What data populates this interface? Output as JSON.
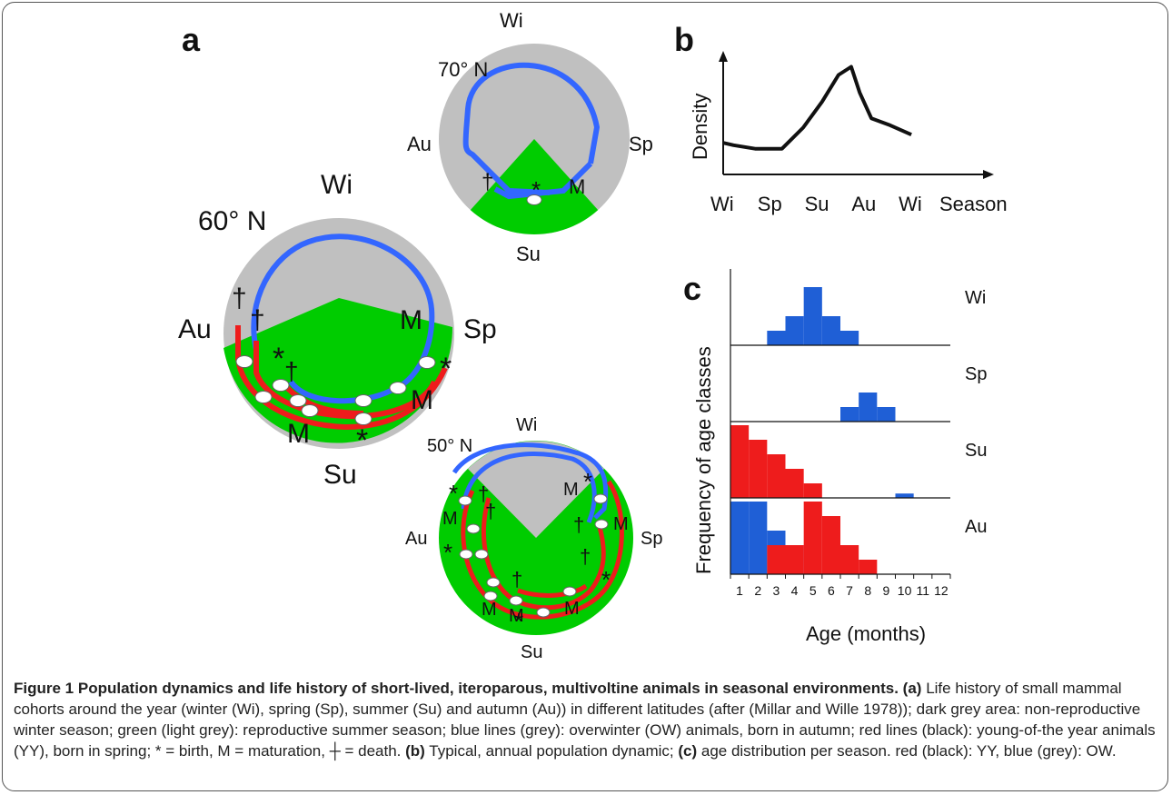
{
  "panels": {
    "a": {
      "label": "a",
      "diagrams": [
        {
          "latitude": "70° N",
          "seasons": {
            "top": "Wi",
            "left": "Au",
            "right": "Sp",
            "bottom": "Su"
          },
          "markers": [
            "†",
            "*",
            "M"
          ]
        },
        {
          "latitude": "60° N",
          "seasons": {
            "top": "Wi",
            "left": "Au",
            "right": "Sp",
            "bottom": "Su"
          },
          "markers": [
            "†",
            "†",
            "†",
            "*",
            "*",
            "*",
            "M",
            "M",
            "M"
          ]
        },
        {
          "latitude": "50° N",
          "seasons": {
            "top": "Wi",
            "left": "Au",
            "right": "Sp",
            "bottom": "Su"
          },
          "markers": [
            "*",
            "†",
            "M",
            "†",
            "*",
            "*",
            "M",
            "M",
            "†",
            "M",
            "†",
            "†",
            "*",
            "*",
            "M",
            "M"
          ]
        }
      ],
      "colors": {
        "winter": "#c0c0c0",
        "summer": "#00cc00",
        "overwinter": "#3366ff",
        "young_of_year": "#ee1c1c"
      }
    },
    "b": {
      "label": "b"
    },
    "c": {
      "label": "c"
    }
  },
  "chart_data": [
    {
      "panel": "b",
      "type": "line",
      "title": "",
      "ylabel": "Density",
      "xlabel": "Season",
      "x_tick_labels": [
        "Wi",
        "Sp",
        "Su",
        "Au",
        "Wi"
      ],
      "x_positions": [
        0,
        1,
        2,
        3,
        4
      ],
      "x": [
        0,
        0.22,
        0.68,
        1.25,
        1.7,
        2.1,
        2.45,
        2.72,
        2.9,
        3.15,
        3.55,
        4.0
      ],
      "y": [
        1.35,
        1.25,
        1.1,
        1.1,
        2.0,
        3.1,
        4.25,
        4.6,
        3.5,
        2.4,
        2.1,
        1.7
      ],
      "ylim": [
        0,
        5.2
      ],
      "xlim": [
        0,
        5.6
      ]
    },
    {
      "panel": "c",
      "type": "bar",
      "title": "",
      "ylabel": "Frequency of age classes",
      "xlabel": "Age (months)",
      "categories": [
        "1",
        "2",
        "3",
        "4",
        "5",
        "6",
        "7",
        "8",
        "9",
        "10",
        "11",
        "12"
      ],
      "ylim": [
        0,
        5
      ],
      "subplots": [
        {
          "season": "Wi",
          "series": [
            {
              "color": "#1f5fd6",
              "values": [
                0,
                0,
                1,
                2,
                4,
                2,
                1,
                0,
                0,
                0,
                0,
                0
              ]
            }
          ]
        },
        {
          "season": "Sp",
          "series": [
            {
              "color": "#1f5fd6",
              "values": [
                0,
                0,
                0,
                0,
                0,
                0,
                1,
                2,
                1,
                0,
                0,
                0
              ]
            }
          ]
        },
        {
          "season": "Su",
          "series": [
            {
              "color": "#ee1c1c",
              "values": [
                5,
                4,
                3,
                2,
                1,
                0,
                0,
                0,
                0,
                0,
                0,
                0
              ]
            },
            {
              "color": "#1f5fd6",
              "values": [
                0,
                0,
                0,
                0,
                0,
                0,
                0,
                0,
                0,
                0.3,
                0,
                0
              ]
            }
          ]
        },
        {
          "season": "Au",
          "series": [
            {
              "color": "#1f5fd6",
              "values": [
                5,
                5,
                3,
                2,
                0,
                0,
                0,
                0,
                0,
                0,
                0,
                0
              ]
            },
            {
              "color": "#ee1c1c",
              "values": [
                0,
                0,
                2,
                2,
                5,
                4,
                2,
                1,
                0,
                0,
                0,
                0
              ]
            }
          ]
        }
      ]
    }
  ],
  "caption": {
    "figure_label": "Figure 1",
    "bold_title": "Population dynamics and life history of short-lived, iteroparous, multivoltine animals in seasonal environments.",
    "tag_a": "(a)",
    "text_a": "Life history of small mammal cohorts around the year (winter (Wi), spring (Sp), summer (Su) and autumn (Au)) in different latitudes (after (Millar and Wille 1978)); dark grey area: non-reproductive winter season; green (light grey): reproductive summer season; blue lines (grey): overwinter (OW) animals, born in autumn; red lines (black): young-of-the year animals (YY), born in spring; * = birth, M = maturation, ┼ = death.",
    "tag_b": "(b)",
    "text_b": "Typical, annual population dynamic;",
    "tag_c": "(c)",
    "text_c": "age distribution per season. red (black): YY, blue (grey): OW."
  }
}
